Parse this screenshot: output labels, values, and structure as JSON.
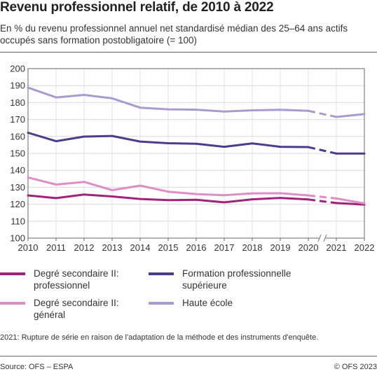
{
  "title": "Revenu professionnel relatif, de 2010 à 2022",
  "subtitle": "En % du revenu professionnel annuel net standardisé médian des 25–64 ans actifs occupés sans formation postobligatoire (= 100)",
  "footnote": "2021: Rupture de série en raison de l'adaptation de la méthode et des instruments d'enquête.",
  "source": "Source: OFS – ESPA",
  "copyright": "© OFS 2023",
  "chart_data": {
    "type": "line",
    "x": [
      "2010",
      "2011",
      "2012",
      "2013",
      "2014",
      "2015",
      "2016",
      "2017",
      "2018",
      "2019",
      "2020",
      "2021",
      "2022"
    ],
    "ylim": [
      100,
      200
    ],
    "yticks": [
      100,
      110,
      120,
      130,
      140,
      150,
      160,
      170,
      180,
      190,
      200
    ],
    "grid": true,
    "series_break": "2021",
    "series": [
      {
        "name": "Degré secondaire II: professionnel",
        "color": "#a0227a",
        "values": [
          125.2,
          123.6,
          125.7,
          124.6,
          123.1,
          122.4,
          122.6,
          121.1,
          122.9,
          123.7,
          122.8,
          120.7,
          119.8
        ]
      },
      {
        "name": "Degré secondaire II: général",
        "color": "#dd8ec4",
        "values": [
          135.8,
          131.6,
          133.2,
          128.3,
          131.0,
          127.4,
          126.0,
          125.3,
          126.4,
          126.5,
          125.2,
          123.4,
          120.5
        ]
      },
      {
        "name": "Formation professionnelle supérieure",
        "color": "#4c3c8c",
        "values": [
          162.2,
          157.2,
          159.9,
          160.3,
          157.0,
          156.0,
          155.7,
          153.9,
          155.9,
          153.9,
          153.7,
          149.9,
          149.9
        ]
      },
      {
        "name": "Haute école",
        "color": "#a99bcf",
        "values": [
          188.8,
          183.0,
          184.5,
          182.5,
          177.0,
          176.0,
          175.8,
          174.7,
          175.4,
          175.7,
          175.1,
          171.5,
          173.2
        ]
      }
    ]
  },
  "legend": {
    "items": [
      {
        "line1": "Degré secondaire II:",
        "line2": "professionnel",
        "color": "#a0227a"
      },
      {
        "line1": "Formation professionnelle",
        "line2": "supérieure",
        "color": "#4c3c8c"
      },
      {
        "line1": "Degré secondaire II:",
        "line2": "général",
        "color": "#dd8ec4"
      },
      {
        "line1": "Haute école",
        "line2": "",
        "color": "#a99bcf"
      }
    ]
  }
}
